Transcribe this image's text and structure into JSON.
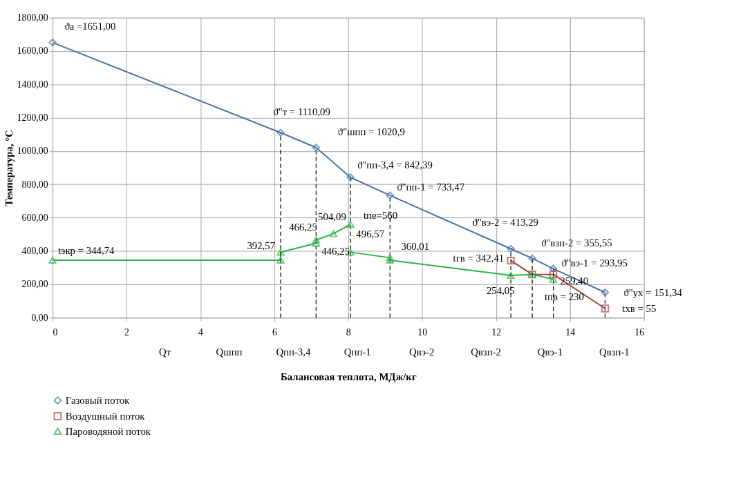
{
  "chart_data": {
    "type": "line",
    "xlabel": "Балансовая теплота, МДж/кг",
    "ylabel": "Температура, °С",
    "xlim": [
      0,
      16
    ],
    "xticks": [
      0,
      2,
      4,
      6,
      8,
      10,
      12,
      14,
      16
    ],
    "ylim": [
      0,
      1800
    ],
    "yticks": [
      {
        "value": 0,
        "label": "0,00"
      },
      {
        "value": 200,
        "label": "200,00"
      },
      {
        "value": 400,
        "label": "400,00"
      },
      {
        "value": 600,
        "label": "600,00"
      },
      {
        "value": 800,
        "label": "800,00"
      },
      {
        "value": 1000,
        "label": "1000,00"
      },
      {
        "value": 1200,
        "label": "1200,00"
      },
      {
        "value": 1400,
        "label": "1400,00"
      },
      {
        "value": 1600,
        "label": "1600,00"
      },
      {
        "value": 1800,
        "label": "1800,00"
      }
    ],
    "grid": true,
    "legend": "bottom",
    "line_style": "solid",
    "series": [
      {
        "name": "Газовый поток",
        "color": "#4a72a8",
        "marker": "diamond",
        "x": [
          0,
          6.17,
          7.13,
          8.06,
          9.13,
          12.4,
          12.98,
          13.55,
          14.95
        ],
        "values": [
          1651,
          1110.09,
          1020.9,
          842.39,
          733.47,
          413.29,
          355.55,
          293.95,
          151.34
        ],
        "value_labels": [
          "ϑa =1651,00",
          "ϑ\"т = 1110,09",
          "ϑ\"шпп = 1020,9",
          "ϑ\"пп-3,4 = 842,39",
          "ϑ\"пп-1 = 733,47",
          "ϑ\"вэ-2 = 413,29",
          "ϑ\"взп-2 = 355,55",
          "ϑ\"вэ-1 = 293,95",
          "ϑ\"ух = 151,34"
        ]
      },
      {
        "name": "Воздушный поток",
        "color": "#a5443f",
        "marker": "square",
        "x": [
          12.4,
          12.98,
          13.55,
          14.95
        ],
        "values": [
          342.41,
          259.4,
          259.4,
          55
        ],
        "value_labels": [
          "tгв = 342,41",
          null,
          "259,40",
          "tхв = 55"
        ]
      },
      {
        "name": "Пароводяной поток",
        "color": "#2db34a",
        "marker": "triangle",
        "x": [
          0,
          6.17,
          6.17,
          7.13,
          7.13,
          7.6,
          8.06
        ],
        "values": [
          344.74,
          344.74,
          392.57,
          446.25,
          466.25,
          504.09,
          560
        ],
        "value_labels": [
          "tэкр = 344,74",
          null,
          "392,57",
          "446,25",
          "466,25",
          "504,09",
          "tпе=560"
        ]
      },
      {
        "color": "#2db34a",
        "marker": "triangle",
        "x": [
          8.06,
          9.13,
          9.13,
          12.4,
          12.98,
          13.55
        ],
        "values": [
          392.57,
          360.01,
          344.74,
          254.05,
          259.4,
          230
        ],
        "value_labels": [
          null,
          "360,01",
          null,
          "254,05",
          null,
          "tпв = 230"
        ]
      }
    ],
    "ref_lines": [
      {
        "axis": "x",
        "value": 6.17,
        "line_style": "dashed",
        "color": "#000000"
      },
      {
        "axis": "x",
        "value": 7.13,
        "line_style": "dashed",
        "color": "#000000"
      },
      {
        "axis": "x",
        "value": 8.06,
        "line_style": "dashed",
        "color": "#000000"
      },
      {
        "axis": "x",
        "value": 9.13,
        "line_style": "dashed",
        "color": "#000000"
      },
      {
        "axis": "x",
        "value": 12.4,
        "line_style": "dashed",
        "color": "#000000"
      },
      {
        "axis": "x",
        "value": 12.98,
        "line_style": "dashed",
        "color": "#000000"
      },
      {
        "axis": "x",
        "value": 13.55,
        "line_style": "dashed",
        "color": "#000000"
      },
      {
        "axis": "x",
        "value": 14.95,
        "line_style": "dashed",
        "color": "#000000"
      }
    ],
    "annotations": [
      {
        "text": "496,57",
        "x": 8.06,
        "y": 392.57
      },
      "Qт",
      "Qшпп",
      "Qпп-3,4",
      "Qпп-1",
      "Qвэ-2",
      "Qвзп-2",
      "Qвэ-1",
      "Qвзп-1"
    ]
  }
}
